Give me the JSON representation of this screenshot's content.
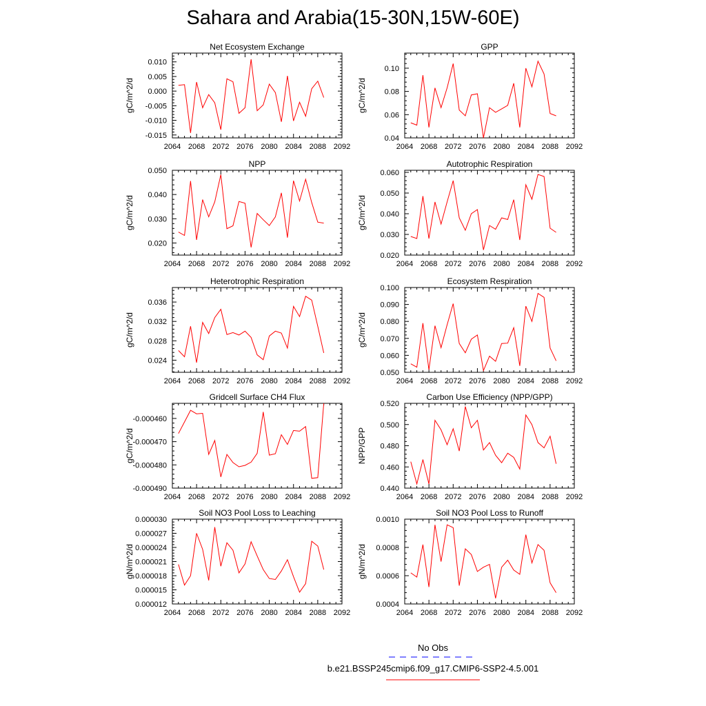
{
  "title": "Sahara and Arabia(15-30N,15W-60E)",
  "legend": {
    "items": [
      {
        "label": "No Obs",
        "color": "#0000ff",
        "style": "dashed"
      },
      {
        "label": "b.e21.BSSP245cmip6.f09_g17.CMIP6-SSP2-4.5.001",
        "color": "#ff0000",
        "style": "solid"
      }
    ]
  },
  "chart_data": [
    {
      "type": "line",
      "title": "Net Ecosystem Exchange",
      "ylabel": "gC/m^2/d",
      "xlim": [
        2064,
        2092
      ],
      "ylim": [
        -0.016,
        0.013
      ],
      "xticks": [
        2064,
        2068,
        2072,
        2076,
        2080,
        2084,
        2088,
        2092
      ],
      "yticks": [
        -0.015,
        -0.01,
        -0.005,
        0.0,
        0.005,
        0.01
      ],
      "ytick_labels": [
        "-0.015",
        "-0.010",
        "-0.005",
        "0.000",
        "0.005",
        "0.010"
      ],
      "x": [
        2065,
        2066,
        2067,
        2068,
        2069,
        2070,
        2071,
        2072,
        2073,
        2074,
        2075,
        2076,
        2077,
        2078,
        2079,
        2080,
        2081,
        2082,
        2083,
        2084,
        2085,
        2086,
        2087,
        2088,
        2089
      ],
      "series": [
        {
          "color": "#ff0000",
          "values": [
            0.002,
            0.0022,
            -0.0143,
            0.0031,
            -0.0057,
            -0.0012,
            -0.004,
            -0.0132,
            0.0042,
            0.0032,
            -0.0076,
            -0.0057,
            0.0109,
            -0.0067,
            -0.0047,
            0.0024,
            -0.0005,
            -0.0105,
            0.0052,
            -0.0102,
            -0.0038,
            -0.0086,
            0.0008,
            0.0034,
            -0.0022
          ]
        }
      ]
    },
    {
      "type": "line",
      "title": "GPP",
      "ylabel": "gC/m^2/d",
      "xlim": [
        2064,
        2092
      ],
      "ylim": [
        0.04,
        0.113
      ],
      "xticks": [
        2064,
        2068,
        2072,
        2076,
        2080,
        2084,
        2088,
        2092
      ],
      "yticks": [
        0.04,
        0.06,
        0.08,
        0.1
      ],
      "ytick_labels": [
        "0.04",
        "0.06",
        "0.08",
        "0.10"
      ],
      "x": [
        2065,
        2066,
        2067,
        2068,
        2069,
        2070,
        2071,
        2072,
        2073,
        2074,
        2075,
        2076,
        2077,
        2078,
        2079,
        2080,
        2081,
        2082,
        2083,
        2084,
        2085,
        2086,
        2087,
        2088,
        2089
      ],
      "series": [
        {
          "color": "#ff0000",
          "values": [
            0.053,
            0.051,
            0.094,
            0.049,
            0.083,
            0.066,
            0.083,
            0.104,
            0.064,
            0.059,
            0.077,
            0.078,
            0.04,
            0.066,
            0.062,
            0.065,
            0.068,
            0.087,
            0.049,
            0.1,
            0.084,
            0.106,
            0.095,
            0.061,
            0.059
          ]
        }
      ]
    },
    {
      "type": "line",
      "title": "NPP",
      "ylabel": "gC/m^2/d",
      "xlim": [
        2064,
        2092
      ],
      "ylim": [
        0.015,
        0.05
      ],
      "xticks": [
        2064,
        2068,
        2072,
        2076,
        2080,
        2084,
        2088,
        2092
      ],
      "yticks": [
        0.02,
        0.03,
        0.04,
        0.05
      ],
      "ytick_labels": [
        "0.020",
        "0.030",
        "0.040",
        "0.050"
      ],
      "x": [
        2065,
        2066,
        2067,
        2068,
        2069,
        2070,
        2071,
        2072,
        2073,
        2074,
        2075,
        2076,
        2077,
        2078,
        2079,
        2080,
        2081,
        2082,
        2083,
        2084,
        2085,
        2086,
        2087,
        2088,
        2089
      ],
      "series": [
        {
          "color": "#ff0000",
          "values": [
            0.0245,
            0.0231,
            0.0456,
            0.0213,
            0.0379,
            0.0308,
            0.037,
            0.0482,
            0.0259,
            0.0271,
            0.0371,
            0.0364,
            0.0182,
            0.0322,
            0.0296,
            0.0272,
            0.0308,
            0.0407,
            0.0222,
            0.0457,
            0.0373,
            0.0463,
            0.0367,
            0.0286,
            0.0282
          ]
        }
      ]
    },
    {
      "type": "line",
      "title": "Autotrophic Respiration",
      "ylabel": "gC/m^2/d",
      "xlim": [
        2064,
        2092
      ],
      "ylim": [
        0.02,
        0.061
      ],
      "xticks": [
        2064,
        2068,
        2072,
        2076,
        2080,
        2084,
        2088,
        2092
      ],
      "yticks": [
        0.02,
        0.03,
        0.04,
        0.05,
        0.06
      ],
      "ytick_labels": [
        "0.020",
        "0.030",
        "0.040",
        "0.050",
        "0.060"
      ],
      "x": [
        2065,
        2066,
        2067,
        2068,
        2069,
        2070,
        2071,
        2072,
        2073,
        2074,
        2075,
        2076,
        2077,
        2078,
        2079,
        2080,
        2081,
        2082,
        2083,
        2084,
        2085,
        2086,
        2087,
        2088,
        2089
      ],
      "series": [
        {
          "color": "#ff0000",
          "values": [
            0.029,
            0.028,
            0.0485,
            0.028,
            0.0457,
            0.035,
            0.0457,
            0.056,
            0.038,
            0.032,
            0.04,
            0.042,
            0.0225,
            0.0343,
            0.0325,
            0.038,
            0.0372,
            0.0468,
            0.0273,
            0.054,
            0.047,
            0.059,
            0.058,
            0.033,
            0.031
          ]
        }
      ]
    },
    {
      "type": "line",
      "title": "Heterotrophic Respiration",
      "ylabel": "gC/m^2/d",
      "xlim": [
        2064,
        2092
      ],
      "ylim": [
        0.0215,
        0.039
      ],
      "xticks": [
        2064,
        2068,
        2072,
        2076,
        2080,
        2084,
        2088,
        2092
      ],
      "yticks": [
        0.024,
        0.028,
        0.032,
        0.036
      ],
      "ytick_labels": [
        "0.024",
        "0.028",
        "0.032",
        "0.036"
      ],
      "x": [
        2065,
        2066,
        2067,
        2068,
        2069,
        2070,
        2071,
        2072,
        2073,
        2074,
        2075,
        2076,
        2077,
        2078,
        2079,
        2080,
        2081,
        2082,
        2083,
        2084,
        2085,
        2086,
        2087,
        2088,
        2089
      ],
      "series": [
        {
          "color": "#ff0000",
          "values": [
            0.026,
            0.0247,
            0.031,
            0.0235,
            0.0318,
            0.0295,
            0.0328,
            0.0345,
            0.0293,
            0.0297,
            0.0292,
            0.03,
            0.0287,
            0.0251,
            0.0241,
            0.029,
            0.03,
            0.0296,
            0.0265,
            0.0351,
            0.033,
            0.0372,
            0.0364,
            0.031,
            0.0255
          ]
        }
      ]
    },
    {
      "type": "line",
      "title": "Ecosystem Respiration",
      "ylabel": "gC/m^2/d",
      "xlim": [
        2064,
        2092
      ],
      "ylim": [
        0.05,
        0.1
      ],
      "xticks": [
        2064,
        2068,
        2072,
        2076,
        2080,
        2084,
        2088,
        2092
      ],
      "yticks": [
        0.05,
        0.06,
        0.07,
        0.08,
        0.09,
        0.1
      ],
      "ytick_labels": [
        "0.050",
        "0.060",
        "0.070",
        "0.080",
        "0.090",
        "0.100"
      ],
      "x": [
        2065,
        2066,
        2067,
        2068,
        2069,
        2070,
        2071,
        2072,
        2073,
        2074,
        2075,
        2076,
        2077,
        2078,
        2079,
        2080,
        2081,
        2082,
        2083,
        2084,
        2085,
        2086,
        2087,
        2088,
        2089
      ],
      "series": [
        {
          "color": "#ff0000",
          "values": [
            0.055,
            0.053,
            0.079,
            0.0515,
            0.0775,
            0.0645,
            0.078,
            0.0905,
            0.067,
            0.0615,
            0.0695,
            0.072,
            0.051,
            0.0595,
            0.0565,
            0.067,
            0.0672,
            0.0763,
            0.0538,
            0.089,
            0.08,
            0.0965,
            0.0942,
            0.0643,
            0.0568
          ]
        }
      ]
    },
    {
      "type": "line",
      "title": "Gridcell Surface CH4 Flux",
      "ylabel": "gC/m^2/d",
      "xlim": [
        2064,
        2092
      ],
      "ylim": [
        -0.00049,
        -0.0004535
      ],
      "xticks": [
        2064,
        2068,
        2072,
        2076,
        2080,
        2084,
        2088,
        2092
      ],
      "yticks": [
        -0.00049,
        -0.00048,
        -0.00047,
        -0.00046
      ],
      "ytick_labels": [
        "-0.000490",
        "-0.000480",
        "-0.000470",
        "-0.000460"
      ],
      "x": [
        2065,
        2066,
        2067,
        2068,
        2069,
        2070,
        2071,
        2072,
        2073,
        2074,
        2075,
        2076,
        2077,
        2078,
        2079,
        2080,
        2081,
        2082,
        2083,
        2084,
        2085,
        2086,
        2087,
        2088,
        2089
      ],
      "series": [
        {
          "color": "#ff0000",
          "values": [
            -0.0004665,
            -0.0004615,
            -0.0004565,
            -0.000458,
            -0.0004578,
            -0.0004755,
            -0.0004695,
            -0.0004852,
            -0.0004755,
            -0.000479,
            -0.0004808,
            -0.0004802,
            -0.0004788,
            -0.000475,
            -0.0004572,
            -0.0004758,
            -0.0004752,
            -0.000467,
            -0.0004712,
            -0.0004652,
            -0.0004655,
            -0.0004635,
            -0.0004858,
            -0.0004855,
            -0.0004535
          ]
        }
      ]
    },
    {
      "type": "line",
      "title": "Carbon Use Efficiency (NPP/GPP)",
      "ylabel": "NPP/GPP",
      "xlim": [
        2064,
        2092
      ],
      "ylim": [
        0.44,
        0.52
      ],
      "xticks": [
        2064,
        2068,
        2072,
        2076,
        2080,
        2084,
        2088,
        2092
      ],
      "yticks": [
        0.44,
        0.46,
        0.48,
        0.5,
        0.52
      ],
      "ytick_labels": [
        "0.440",
        "0.460",
        "0.480",
        "0.500",
        "0.520"
      ],
      "x": [
        2065,
        2066,
        2067,
        2068,
        2069,
        2070,
        2071,
        2072,
        2073,
        2074,
        2075,
        2076,
        2077,
        2078,
        2079,
        2080,
        2081,
        2082,
        2083,
        2084,
        2085,
        2086,
        2087,
        2088,
        2089
      ],
      "series": [
        {
          "color": "#ff0000",
          "values": [
            0.465,
            0.444,
            0.467,
            0.444,
            0.504,
            0.495,
            0.481,
            0.496,
            0.475,
            0.517,
            0.497,
            0.504,
            0.476,
            0.483,
            0.471,
            0.464,
            0.473,
            0.469,
            0.458,
            0.509,
            0.5,
            0.483,
            0.478,
            0.489,
            0.463
          ]
        }
      ]
    },
    {
      "type": "line",
      "title": "Soil NO3 Pool Loss to Leaching",
      "ylabel": "gN/m^2/d",
      "xlim": [
        2064,
        2092
      ],
      "ylim": [
        1.2e-05,
        3e-05
      ],
      "xticks": [
        2064,
        2068,
        2072,
        2076,
        2080,
        2084,
        2088,
        2092
      ],
      "yticks": [
        1.2e-05,
        1.5e-05,
        1.8e-05,
        2.1e-05,
        2.4e-05,
        2.7e-05,
        3e-05
      ],
      "ytick_labels": [
        "0.000012",
        "0.000015",
        "0.000018",
        "0.000021",
        "0.000024",
        "0.000027",
        "0.000030"
      ],
      "x": [
        2065,
        2066,
        2067,
        2068,
        2069,
        2070,
        2071,
        2072,
        2073,
        2074,
        2075,
        2076,
        2077,
        2078,
        2079,
        2080,
        2081,
        2082,
        2083,
        2084,
        2085,
        2086,
        2087,
        2088,
        2089
      ],
      "series": [
        {
          "color": "#ff0000",
          "values": [
            2.04e-05,
            1.6e-05,
            1.8e-05,
            2.7e-05,
            2.36e-05,
            1.7e-05,
            2.83e-05,
            2e-05,
            2.5e-05,
            2.34e-05,
            1.86e-05,
            2.05e-05,
            2.52e-05,
            2.22e-05,
            1.93e-05,
            1.74e-05,
            1.72e-05,
            1.9e-05,
            2.14e-05,
            1.78e-05,
            1.45e-05,
            1.63e-05,
            2.53e-05,
            2.43e-05,
            1.93e-05
          ]
        }
      ]
    },
    {
      "type": "line",
      "title": "Soil NO3 Pool Loss to Runoff",
      "ylabel": "gN/m^2/d",
      "xlim": [
        2064,
        2092
      ],
      "ylim": [
        0.0004,
        0.001
      ],
      "xticks": [
        2064,
        2068,
        2072,
        2076,
        2080,
        2084,
        2088,
        2092
      ],
      "yticks": [
        0.0004,
        0.0006,
        0.0008,
        0.001
      ],
      "ytick_labels": [
        "0.0004",
        "0.0006",
        "0.0008",
        "0.0010"
      ],
      "x": [
        2065,
        2066,
        2067,
        2068,
        2069,
        2070,
        2071,
        2072,
        2073,
        2074,
        2075,
        2076,
        2077,
        2078,
        2079,
        2080,
        2081,
        2082,
        2083,
        2084,
        2085,
        2086,
        2087,
        2088,
        2089
      ],
      "series": [
        {
          "color": "#ff0000",
          "values": [
            0.00062,
            0.00059,
            0.00082,
            0.00052,
            0.00096,
            0.0007,
            0.00096,
            0.00094,
            0.00053,
            0.00079,
            0.00075,
            0.00063,
            0.00066,
            0.00068,
            0.00044,
            0.00066,
            0.00071,
            0.00064,
            0.00061,
            0.00089,
            0.00069,
            0.00082,
            0.00078,
            0.00055,
            0.00048
          ]
        }
      ]
    }
  ]
}
